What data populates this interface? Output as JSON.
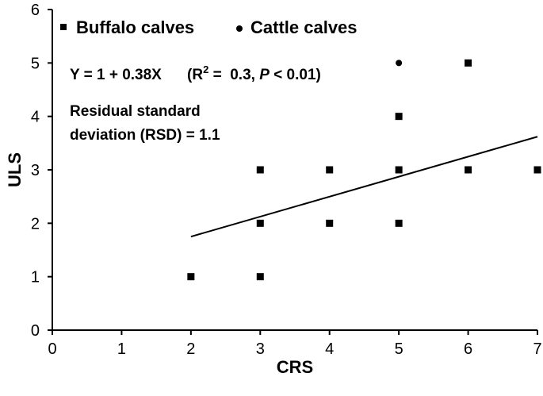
{
  "chart_data": {
    "type": "scatter",
    "title": "",
    "xlabel": "CRS",
    "ylabel": "ULS",
    "xlim": [
      0,
      7
    ],
    "ylim": [
      0,
      6
    ],
    "xticks": [
      "0",
      "1",
      "2",
      "3",
      "4",
      "5",
      "6",
      "7"
    ],
    "yticks": [
      "0",
      "1",
      "2",
      "3",
      "4",
      "5",
      "6"
    ],
    "grid": false,
    "legend_position": "top-left",
    "series": [
      {
        "name": "Buffalo calves",
        "marker": "square",
        "points": [
          {
            "x": 2,
            "y": 1
          },
          {
            "x": 3,
            "y": 1
          },
          {
            "x": 3,
            "y": 2
          },
          {
            "x": 3,
            "y": 3
          },
          {
            "x": 4,
            "y": 2
          },
          {
            "x": 4,
            "y": 3
          },
          {
            "x": 5,
            "y": 2
          },
          {
            "x": 5,
            "y": 3
          },
          {
            "x": 5,
            "y": 4
          },
          {
            "x": 6,
            "y": 3
          },
          {
            "x": 6,
            "y": 5
          },
          {
            "x": 7,
            "y": 3
          }
        ]
      },
      {
        "name": "Cattle calves",
        "marker": "circle",
        "points": [
          {
            "x": 5,
            "y": 5
          }
        ]
      }
    ],
    "regression_line": {
      "x_start": 2,
      "y_start": 1.75,
      "x_end": 7,
      "y_end": 3.62
    },
    "annotations": {
      "equation": "Y = 1 + 0.38X",
      "stats_open": "(R",
      "stats_sup": "2",
      "stats_mid": " =  0.3, ",
      "stats_p": "P",
      "stats_close": " < 0.01)",
      "rsd_line1": "Residual standard",
      "rsd_line2": "deviation (RSD) = 1.1"
    }
  }
}
